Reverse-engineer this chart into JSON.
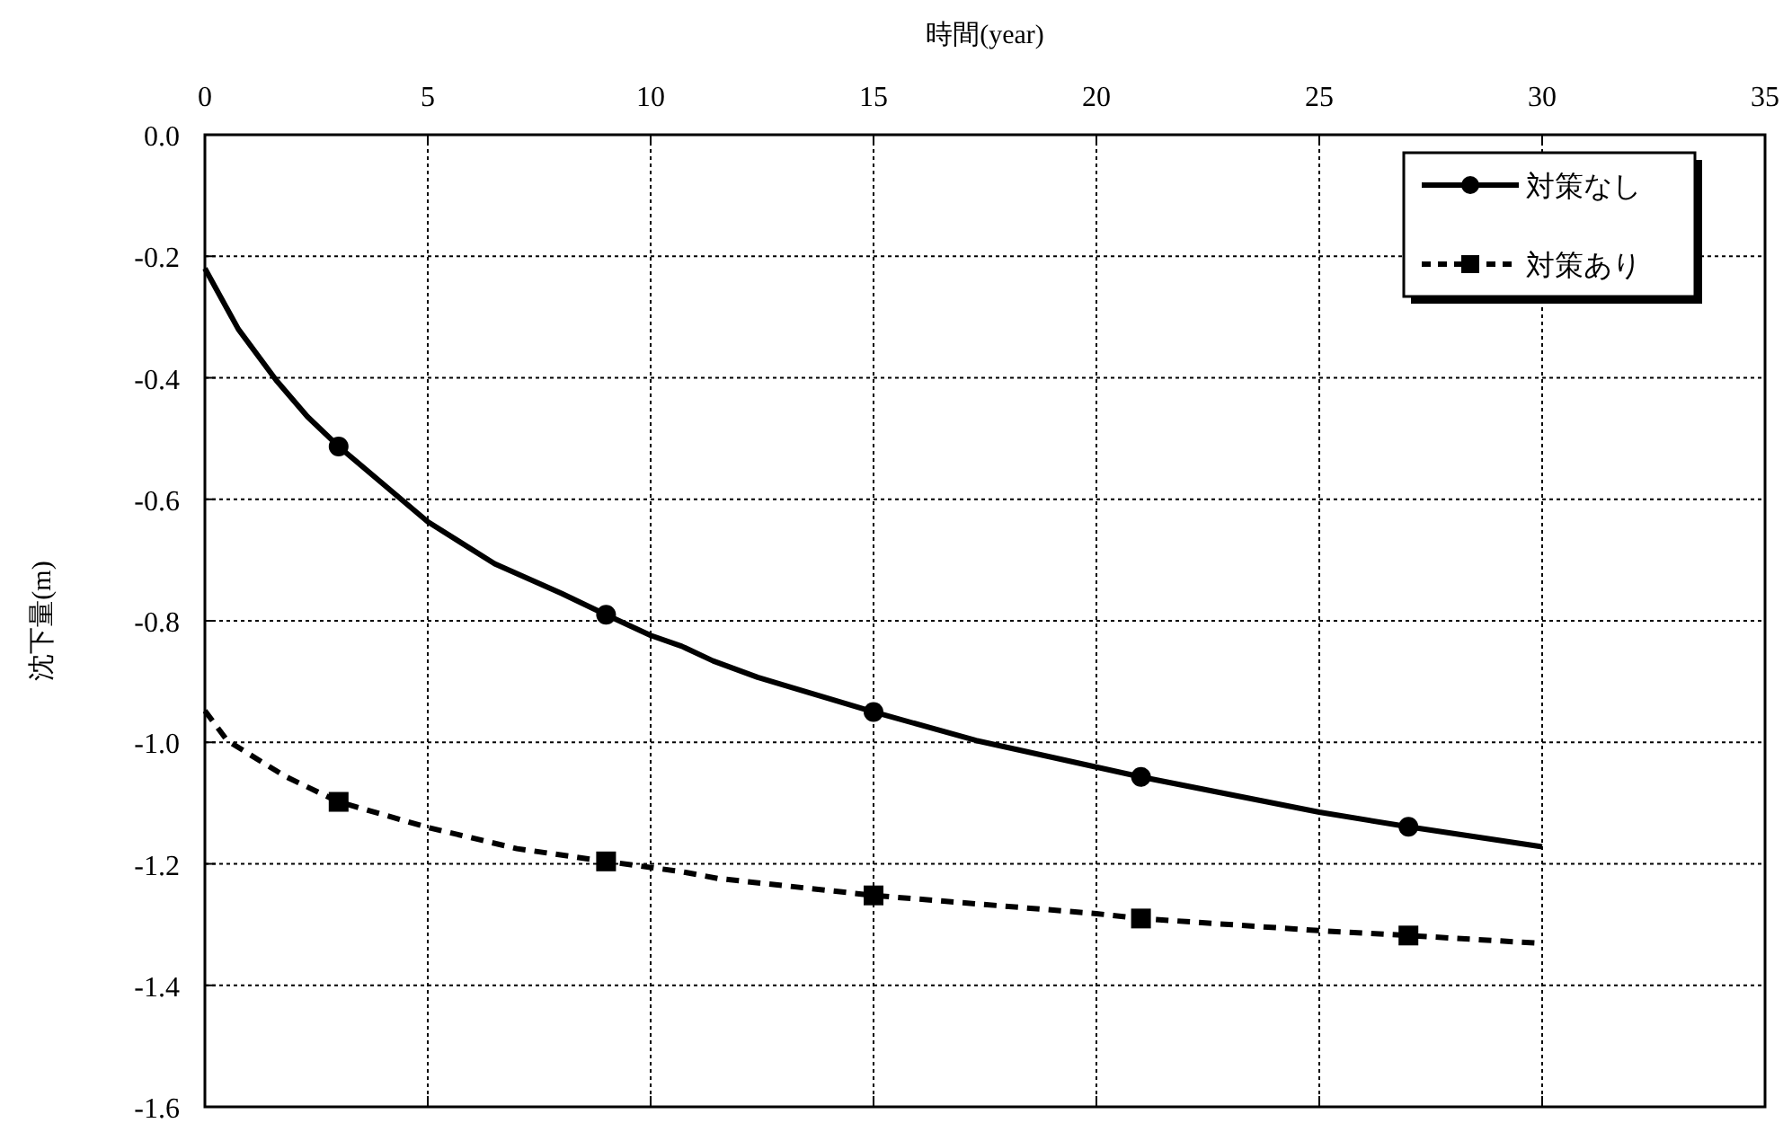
{
  "chart_data": {
    "type": "line",
    "xlabel": "時間(year)",
    "ylabel": "沈下量(m)",
    "xlim": [
      0,
      35
    ],
    "xticks": [
      0,
      5,
      10,
      15,
      20,
      25,
      30,
      35
    ],
    "ylim": [
      -1.6,
      0
    ],
    "yticks": [
      {
        "value": 0,
        "label": "0.0"
      },
      {
        "value": -0.2,
        "label": "-0.2"
      },
      {
        "value": -0.4,
        "label": "-0.4"
      },
      {
        "value": -0.6,
        "label": "-0.6"
      },
      {
        "value": -0.8,
        "label": "-0.8"
      },
      {
        "value": -1.0,
        "label": "-1.0"
      },
      {
        "value": -1.2,
        "label": "-1.2"
      },
      {
        "value": -1.4,
        "label": "-1.4"
      },
      {
        "value": -1.6,
        "label": "-1.6"
      }
    ],
    "grid": true,
    "legend": "top right",
    "series": [
      {
        "name": "対策なし",
        "type": "line",
        "color": "#000000",
        "line_style": "solid",
        "x": [
          0,
          0.75,
          1.6,
          2.3,
          3,
          5,
          6.5,
          8,
          9,
          10,
          10.7,
          11.4,
          12.4,
          15,
          17.3,
          21,
          25,
          27,
          30
        ],
        "values": [
          -0.22,
          -0.32,
          -0.404,
          -0.464,
          -0.513,
          -0.637,
          -0.706,
          -0.755,
          -0.79,
          -0.824,
          -0.842,
          -0.866,
          -0.893,
          -0.95,
          -0.997,
          -1.057,
          -1.115,
          -1.139,
          -1.172
        ]
      },
      {
        "type": "scatter",
        "color": "#000000",
        "marker": "circle",
        "x": [
          3,
          9,
          15,
          21,
          27
        ],
        "values": [
          -0.513,
          -0.79,
          -0.95,
          -1.057,
          -1.139
        ]
      },
      {
        "name": "対策あり",
        "type": "line",
        "color": "#000000",
        "line_style": "dashed",
        "x": [
          0,
          0.5,
          1.8,
          3,
          5,
          7,
          9,
          10.7,
          11.5,
          15,
          20,
          21,
          25,
          27,
          30
        ],
        "values": [
          -0.948,
          -0.997,
          -1.056,
          -1.098,
          -1.14,
          -1.175,
          -1.196,
          -1.213,
          -1.224,
          -1.252,
          -1.282,
          -1.29,
          -1.31,
          -1.318,
          -1.331
        ]
      },
      {
        "type": "scatter",
        "color": "#000000",
        "marker": "square",
        "x": [
          3,
          9,
          15,
          21,
          27
        ],
        "values": [
          -1.098,
          -1.196,
          -1.252,
          -1.29,
          -1.318
        ]
      }
    ]
  }
}
